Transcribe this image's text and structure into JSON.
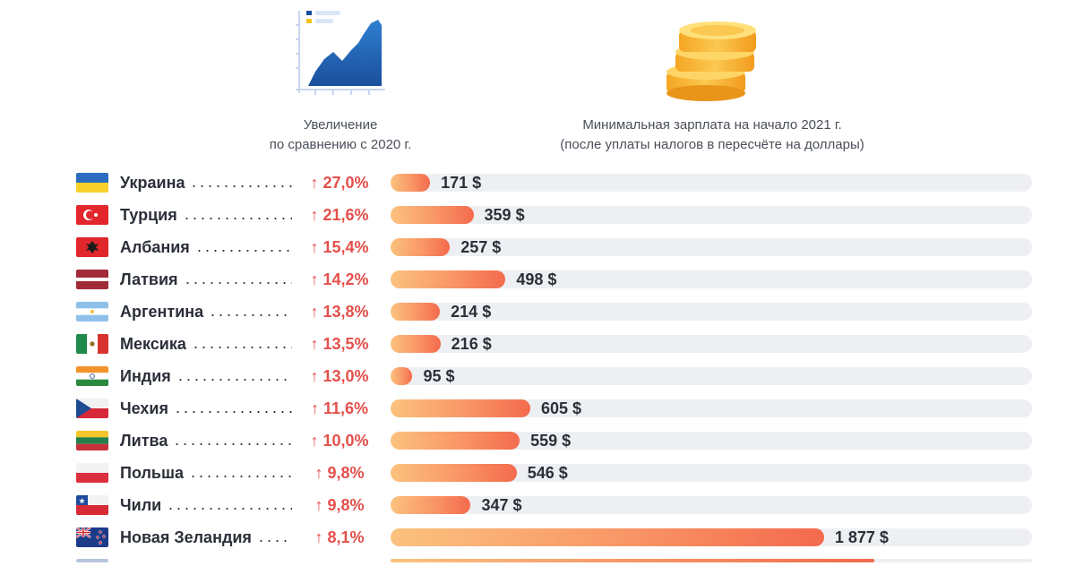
{
  "headers": {
    "increase_line1": "Увеличение",
    "increase_line2": "по сравнению с 2020 г.",
    "wage_line1": "Минимальная зарплата на начало 2021 г.",
    "wage_line2": "(после уплаты налогов в пересчёте на доллары)"
  },
  "icons": {
    "left": "area-chart-icon",
    "right": "coin-stack-icon"
  },
  "colors": {
    "increase_text": "#e4504b",
    "bar_start": "#fbc27e",
    "bar_end": "#f36a4d",
    "track": "#eeeff3"
  },
  "chart_data": {
    "type": "bar",
    "orientation": "horizontal",
    "categories": [
      "Украина",
      "Турция",
      "Албания",
      "Латвия",
      "Аргентина",
      "Мексика",
      "Индия",
      "Чехия",
      "Литва",
      "Польша",
      "Чили",
      "Новая Зеландия"
    ],
    "increase_labels": [
      "27,0%",
      "21,6%",
      "15,4%",
      "14,2%",
      "13,8%",
      "13,5%",
      "13,0%",
      "11,6%",
      "10,0%",
      "9,8%",
      "9,8%",
      "8,1%"
    ],
    "values": [
      171,
      359,
      257,
      498,
      214,
      216,
      95,
      605,
      559,
      546,
      347,
      1877
    ],
    "value_labels": [
      "171 $",
      "359 $",
      "257 $",
      "498 $",
      "214 $",
      "216 $",
      "95 $",
      "605 $",
      "559 $",
      "546 $",
      "347 $",
      "1 877 $"
    ],
    "flags": [
      "ukraine-flag-icon",
      "turkey-flag-icon",
      "albania-flag-icon",
      "latvia-flag-icon",
      "argentina-flag-icon",
      "mexico-flag-icon",
      "india-flag-icon",
      "czechia-flag-icon",
      "lithuania-flag-icon",
      "poland-flag-icon",
      "chile-flag-icon",
      "new-zealand-flag-icon"
    ],
    "increase_arrow": "↑",
    "xlim": [
      0,
      2000
    ],
    "grid": false
  }
}
